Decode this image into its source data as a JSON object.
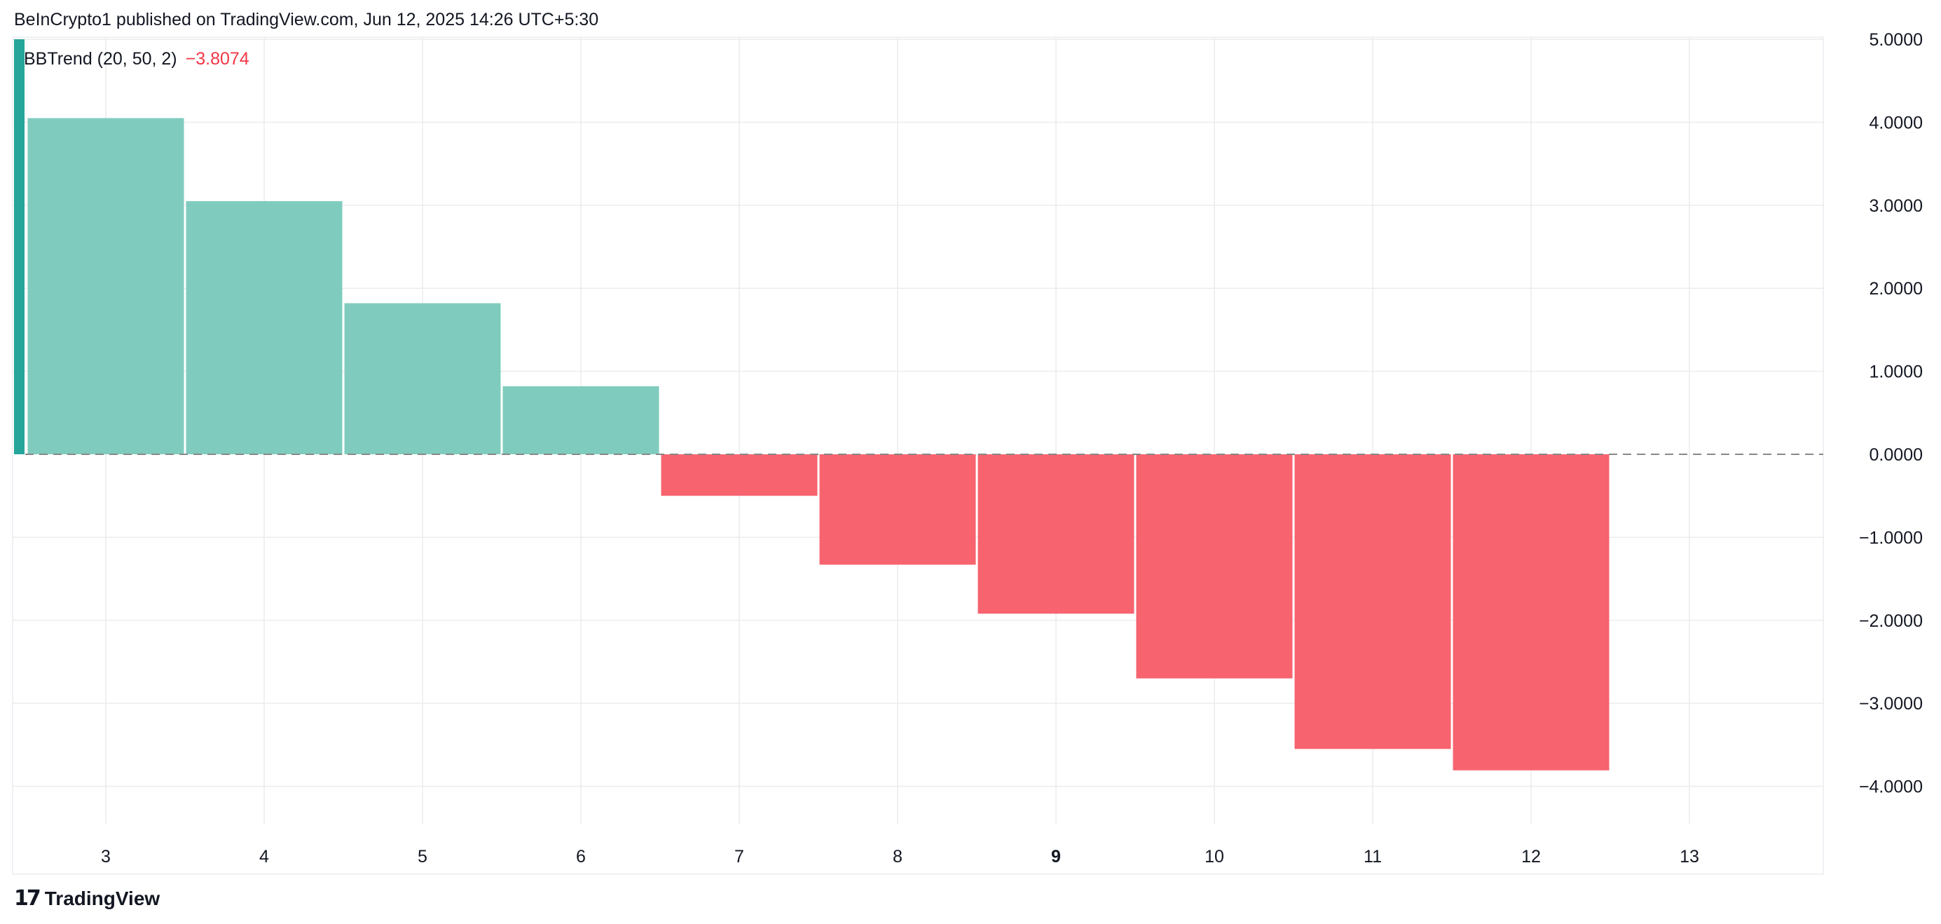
{
  "header": {
    "published": "BeInCrypto1 published on TradingView.com, Jun 12, 2025 14:26 UTC+5:30"
  },
  "legend": {
    "name": "BBTrend (20, 50, 2)",
    "value": "−3.8074"
  },
  "footer": {
    "brand": "TradingView",
    "logo_icon": "tradingview-logo-icon"
  },
  "colors": {
    "positive": "#7fccbe",
    "negative": "#f7636f",
    "edge_positive": "#26a69a",
    "grid": "#ececec",
    "zero_line": "#888888"
  },
  "chart_data": {
    "type": "bar",
    "title": "",
    "categories": [
      "3",
      "4",
      "5",
      "6",
      "7",
      "8",
      "9",
      "10",
      "11",
      "12"
    ],
    "values": [
      4.05,
      3.05,
      1.82,
      0.82,
      -0.5,
      -1.33,
      -1.92,
      -2.7,
      -3.55,
      -3.8074
    ],
    "x_ticks": [
      "3",
      "4",
      "5",
      "6",
      "7",
      "8",
      "9",
      "10",
      "11",
      "12",
      "13"
    ],
    "x_tick_bold": "9",
    "y_ticks": [
      "5.0000",
      "4.0000",
      "3.0000",
      "2.0000",
      "1.0000",
      "0.0000",
      "−1.0000",
      "−2.0000",
      "−3.0000",
      "−4.0000"
    ],
    "ylim": [
      -4.6,
      5.0
    ],
    "xlim": [
      2.42,
      13.9
    ],
    "grid": true,
    "zero_line": "dashed",
    "xlabel": "",
    "ylabel": ""
  }
}
